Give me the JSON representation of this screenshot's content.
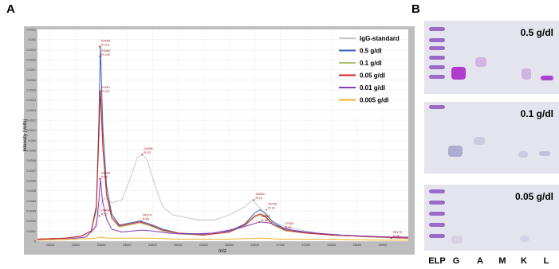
{
  "panels": {
    "a_label": "A",
    "b_label": "B"
  },
  "chart_data": {
    "type": "line",
    "title": "",
    "xlabel": "m/z",
    "ylabel": "Intensity (Volts)",
    "xlim": [
      22250,
      29500
    ],
    "ylim": [
      0,
      0.0021
    ],
    "xticks": [
      "22500",
      "23000",
      "23500",
      "24000",
      "24500",
      "25000",
      "25500",
      "26000",
      "26500",
      "27000",
      "27500",
      "28000",
      "28500",
      "29000"
    ],
    "yticks": [
      "0",
      "0.0001",
      "0.0002",
      "0.0003",
      "0.0004",
      "0.0005",
      "0.0006",
      "0.0007",
      "0.0008",
      "0.0009",
      "0.001",
      "0.0011",
      "0.0012",
      "0.0013",
      "0.0014",
      "0.0015",
      "0.0016",
      "0.0017",
      "0.0018",
      "0.0019",
      "0.002",
      "0.0021"
    ],
    "legend_position": "top-right",
    "series": [
      {
        "name": "IgG-standard",
        "color": "#c8c8c8",
        "x": [
          22250,
          22700,
          23000,
          23200,
          23350,
          23480,
          23560,
          23700,
          23900,
          24050,
          24200,
          24300,
          24400,
          24550,
          24700,
          24900,
          25100,
          25400,
          25700,
          26000,
          26300,
          26450,
          26550,
          26700,
          26850,
          27000,
          27300,
          27700,
          28200,
          28700,
          29200,
          29500
        ],
        "y": [
          2e-05,
          3e-05,
          4e-05,
          6e-05,
          0.0001,
          0.00035,
          0.00043,
          0.00038,
          0.00041,
          0.0006,
          0.00083,
          0.00086,
          0.0008,
          0.00055,
          0.00034,
          0.00026,
          0.00024,
          0.00021,
          0.00021,
          0.00026,
          0.00034,
          0.00041,
          0.00036,
          0.00026,
          0.0002,
          0.00016,
          0.00012,
          8e-05,
          6e-05,
          4e-05,
          3e-05,
          3e-05
        ]
      },
      {
        "name": "0.5 g/dl",
        "color": "#3a62b8",
        "x": [
          22250,
          22800,
          23100,
          23300,
          23400,
          23450,
          23480,
          23530,
          23600,
          23700,
          23850,
          24050,
          24250,
          24450,
          24700,
          25000,
          25500,
          26000,
          26300,
          26500,
          26600,
          26700,
          26850,
          27100,
          27500,
          28000,
          28500,
          29000,
          29500
        ],
        "y": [
          2e-05,
          3e-05,
          5e-05,
          0.0001,
          0.00035,
          0.0012,
          0.00193,
          0.0011,
          0.00055,
          0.00027,
          0.00016,
          0.00018,
          0.0002,
          0.00017,
          0.00012,
          8e-05,
          7e-05,
          0.0001,
          0.00017,
          0.00028,
          0.00031,
          0.00028,
          0.00019,
          0.00012,
          9e-05,
          6e-05,
          5e-05,
          4e-05,
          3e-05
        ]
      },
      {
        "name": "0.1 g/dl",
        "color": "#a8c070",
        "x": [
          22250,
          22800,
          23100,
          23300,
          23400,
          23450,
          23480,
          23530,
          23600,
          23700,
          23850,
          24050,
          24250,
          24450,
          24700,
          25000,
          25500,
          26000,
          26300,
          26500,
          26600,
          26700,
          26850,
          27100,
          27500,
          28000,
          28500,
          29000,
          29500
        ],
        "y": [
          2e-05,
          3e-05,
          5e-05,
          0.0001,
          0.0003,
          0.001,
          0.00145,
          0.0009,
          0.00045,
          0.00022,
          0.00014,
          0.00016,
          0.00018,
          0.00015,
          0.0001,
          7e-05,
          6e-05,
          9e-05,
          0.00015,
          0.00024,
          0.00026,
          0.00024,
          0.00016,
          0.0001,
          8e-05,
          6e-05,
          5e-05,
          4e-05,
          3e-05
        ]
      },
      {
        "name": "0.05 g/dl",
        "color": "#d02020",
        "x": [
          22250,
          22800,
          23100,
          23300,
          23400,
          23450,
          23480,
          23530,
          23600,
          23700,
          23850,
          24050,
          24250,
          24450,
          24700,
          25000,
          25500,
          26000,
          26300,
          26500,
          26600,
          26700,
          26850,
          27100,
          27500,
          28000,
          28500,
          29000,
          29500
        ],
        "y": [
          2e-05,
          3e-05,
          5e-05,
          0.0001,
          0.00033,
          0.00108,
          0.0015,
          0.00092,
          0.00047,
          0.00024,
          0.00015,
          0.00017,
          0.00019,
          0.00016,
          0.00011,
          8e-05,
          6e-05,
          9e-05,
          0.00016,
          0.00025,
          0.00027,
          0.00025,
          0.00017,
          0.00011,
          8e-05,
          6e-05,
          5e-05,
          4e-05,
          3e-05
        ]
      },
      {
        "name": "0.01 g/dl",
        "color": "#8a3ab8",
        "x": [
          22250,
          22800,
          23200,
          23400,
          23450,
          23480,
          23520,
          23600,
          23700,
          23900,
          24100,
          24300,
          24500,
          24800,
          25200,
          25700,
          26200,
          26600,
          26800,
          27000,
          27300,
          27700,
          28200,
          28700,
          29200,
          29500
        ],
        "y": [
          1e-05,
          2e-05,
          4e-05,
          0.00015,
          0.0004,
          0.00062,
          0.0004,
          0.00022,
          0.00012,
          9e-05,
          0.0001,
          0.00011,
          0.0001,
          8e-05,
          7e-05,
          8e-05,
          0.00013,
          0.00019,
          0.00018,
          0.00014,
          0.0001,
          8e-05,
          6e-05,
          5e-05,
          4e-05,
          4e-05
        ]
      },
      {
        "name": "0.005 g/dl",
        "color": "#f0b020",
        "x": [
          22250,
          23000,
          23400,
          23480,
          23600,
          24000,
          24500,
          25000,
          26000,
          26600,
          27000,
          28000,
          29000,
          29500
        ],
        "y": [
          1e-05,
          2e-05,
          3e-05,
          4e-05,
          3e-05,
          3e-05,
          3e-05,
          2e-05,
          2e-05,
          3e-05,
          2e-05,
          2e-05,
          1e-05,
          1e-05
        ]
      }
    ],
    "annotations": [
      {
        "x": 23465,
        "y": 0.00193,
        "lines": [
          "23465",
          "R:121"
        ]
      },
      {
        "x": 23469,
        "y": 0.00183,
        "lines": [
          "23469",
          "R:139"
        ]
      },
      {
        "x": 23467,
        "y": 0.00147,
        "lines": [
          "23467",
          "R:112"
        ]
      },
      {
        "x": 24298,
        "y": 0.00086,
        "lines": [
          "24298",
          "R:32"
        ]
      },
      {
        "x": 23465,
        "y": 0.00062,
        "lines": [
          "23465",
          "R:62"
        ]
      },
      {
        "x": 24274,
        "y": 0.0002,
        "lines": [
          "24274",
          "R:62"
        ]
      },
      {
        "x": 23458,
        "y": 0.00025,
        "lines": [
          "23458",
          "R:57"
        ]
      },
      {
        "x": 26484,
        "y": 0.00041,
        "lines": [
          "26484",
          "R:14"
        ]
      },
      {
        "x": 26728,
        "y": 0.00031,
        "lines": [
          "26728",
          "R:19"
        ]
      },
      {
        "x": 26593,
        "y": 0.00019,
        "lines": [
          "26593",
          "R:38"
        ]
      },
      {
        "x": 27054,
        "y": 0.00012,
        "lines": [
          "27054",
          "R:40"
        ]
      },
      {
        "x": 29170,
        "y": 3e-05,
        "lines": [
          "29170",
          "R:69"
        ]
      }
    ]
  },
  "gels": [
    {
      "concentration": "0.5 g/dl"
    },
    {
      "concentration": "0.1 g/dl"
    },
    {
      "concentration": "0.05 g/dl"
    }
  ],
  "lanes": [
    "ELP",
    "G",
    "A",
    "M",
    "K",
    "L"
  ]
}
